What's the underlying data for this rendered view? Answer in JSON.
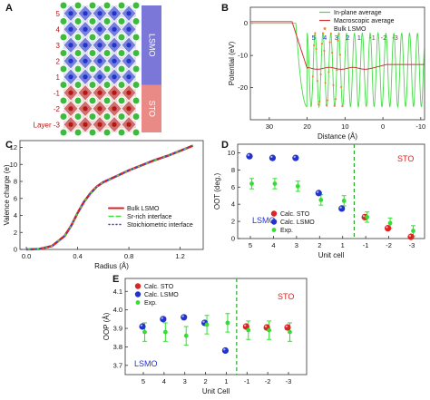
{
  "panels": {
    "A": {
      "letter": "A",
      "layers": [
        "5",
        "4",
        "3",
        "2",
        "1",
        "-1",
        "-2",
        "-3"
      ],
      "layer_prefix": "Layer",
      "bar_labels": [
        "LSMO",
        "STO"
      ],
      "colors": {
        "lsmo_bar": "#7b77d8",
        "sto_bar": "#ea8a86",
        "blue_atom": "#2233c8",
        "red_atom": "#b11717",
        "green_atom": "#3dbb3d",
        "layer_text": "#b11717",
        "white": "#ffffff"
      }
    },
    "B": {
      "letter": "B"
    },
    "C": {
      "letter": "C"
    },
    "D": {
      "letter": "D"
    },
    "E": {
      "letter": "E"
    }
  },
  "chart_data": [
    {
      "id": "B",
      "type": "line",
      "xlabel": "Distance (Å)",
      "ylabel": "Potential (eV)",
      "xlim": [
        35,
        -11
      ],
      "ylim": [
        -30,
        5
      ],
      "xticks": [
        30,
        20,
        10,
        0,
        -10
      ],
      "yticks": [
        0,
        -10,
        -20
      ],
      "series": [
        {
          "name": "In-plane average",
          "color": "#44dd44",
          "style": "line"
        },
        {
          "name": "Macroscopic average",
          "color": "#cc3333",
          "style": "line"
        },
        {
          "name": "Bulk LSMO",
          "color": "#ee8833",
          "style": "dots"
        }
      ],
      "layer_labels": [
        "5",
        "4",
        "3",
        "2",
        "1",
        "-1",
        "-2",
        "-3"
      ],
      "layer_label_colors": [
        "#2233cc",
        "#2233cc",
        "#2233cc",
        "#2233cc",
        "#2233cc",
        "#cc2222",
        "#cc2222",
        "#cc2222"
      ],
      "legend": "top-right"
    },
    {
      "id": "C",
      "type": "line",
      "xlabel": "Radius (Å)",
      "ylabel": "Valence charge (e)",
      "xlim": [
        -0.05,
        1.38
      ],
      "ylim": [
        0,
        12.8
      ],
      "xticks": [
        0.0,
        0.4,
        0.8,
        1.2
      ],
      "yticks": [
        0,
        2,
        4,
        6,
        8,
        10,
        12
      ],
      "x": [
        0.0,
        0.1,
        0.2,
        0.3,
        0.35,
        0.4,
        0.45,
        0.5,
        0.55,
        0.6,
        0.7,
        0.8,
        0.9,
        1.0,
        1.1,
        1.2,
        1.3
      ],
      "y": [
        0.0,
        0.05,
        0.4,
        1.6,
        2.8,
        4.3,
        5.6,
        6.6,
        7.4,
        7.9,
        8.6,
        9.3,
        9.9,
        10.5,
        11.0,
        11.6,
        12.2
      ],
      "series": [
        {
          "name": "Bulk LSMO",
          "color": "#dd2222",
          "style": "solid"
        },
        {
          "name": "Sr-rich interface",
          "color": "#44dd44",
          "style": "dashed"
        },
        {
          "name": "Stoichiometric interface",
          "color": "#3344cc",
          "style": "dotted"
        }
      ],
      "legend": "bottom-right"
    },
    {
      "id": "D",
      "type": "scatter",
      "xlabel": "Unit cell",
      "ylabel": "OOT (deg.)",
      "categories": [
        "5",
        "4",
        "3",
        "2",
        "1",
        "-1",
        "-2",
        "-3"
      ],
      "ylim": [
        0,
        11
      ],
      "yticks": [
        0,
        2,
        4,
        6,
        8,
        10
      ],
      "series": [
        {
          "name": "Calc. STO",
          "color": "#dd2222",
          "values": [
            null,
            null,
            null,
            null,
            null,
            2.5,
            1.2,
            0.2
          ]
        },
        {
          "name": "Calc. LSMO",
          "color": "#2233cc",
          "values": [
            9.6,
            9.4,
            9.4,
            5.3,
            3.5,
            null,
            null,
            null
          ]
        },
        {
          "name": "Exp.",
          "color": "#33dd33",
          "values": [
            6.4,
            6.4,
            6.1,
            4.5,
            4.4,
            2.5,
            1.8,
            0.9
          ],
          "errors": [
            0.6,
            0.6,
            0.6,
            0.6,
            0.6,
            0.6,
            0.6,
            0.6
          ]
        }
      ],
      "labels": {
        "lsmo": "LSMO",
        "sto": "STO"
      },
      "label_colors": {
        "lsmo": "#2233cc",
        "sto": "#dd2222"
      },
      "divider_color": "#22aa22",
      "legend": "bottom-center"
    },
    {
      "id": "E",
      "type": "scatter",
      "xlabel": "Unit Cell",
      "ylabel": "OOP (Å)",
      "categories": [
        "5",
        "4",
        "3",
        "2",
        "1",
        "-1",
        "-2",
        "-3"
      ],
      "ylim": [
        3.65,
        4.17
      ],
      "yticks": [
        3.7,
        3.8,
        3.9,
        4.0,
        4.1
      ],
      "series": [
        {
          "name": "Calc. STO",
          "color": "#dd2222",
          "values": [
            null,
            null,
            null,
            null,
            null,
            3.91,
            3.905,
            3.905
          ]
        },
        {
          "name": "Calc. LSMO",
          "color": "#2233cc",
          "values": [
            3.91,
            3.95,
            3.96,
            3.93,
            3.78,
            null,
            null,
            null
          ]
        },
        {
          "name": "Exp.",
          "color": "#33dd33",
          "values": [
            3.88,
            3.88,
            3.86,
            3.92,
            3.93,
            3.89,
            3.89,
            3.88
          ],
          "errors": [
            0.05,
            0.05,
            0.05,
            0.05,
            0.05,
            0.05,
            0.05,
            0.05
          ]
        }
      ],
      "labels": {
        "lsmo": "LSMO",
        "sto": "STO"
      },
      "label_colors": {
        "lsmo": "#2233cc",
        "sto": "#dd2222"
      },
      "divider_color": "#22aa22",
      "legend": "top-left"
    }
  ]
}
